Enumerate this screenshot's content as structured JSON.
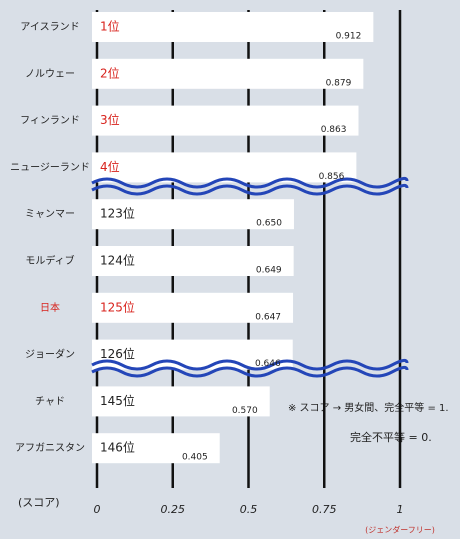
{
  "chart_data": {
    "type": "bar",
    "orientation": "horizontal",
    "categories": [
      "アイスランド",
      "ノルウェー",
      "フィンランド",
      "ニュージーランド",
      "ミャンマー",
      "モルディブ",
      "日本",
      "ジョーダン",
      "チャド",
      "アフガニスタン"
    ],
    "ranks": [
      "1位",
      "2位",
      "3位",
      "4位",
      "123位",
      "124位",
      "125位",
      "126位",
      "145位",
      "146位"
    ],
    "rank_colors": [
      "#d8231d",
      "#d8231d",
      "#d8231d",
      "#d8231d",
      "#222222",
      "#222222",
      "#d8231d",
      "#222222",
      "#222222",
      "#222222"
    ],
    "category_colors": [
      "#222222",
      "#222222",
      "#222222",
      "#222222",
      "#222222",
      "#222222",
      "#d8231d",
      "#222222",
      "#222222",
      "#222222"
    ],
    "values": [
      0.912,
      0.879,
      0.863,
      0.856,
      0.65,
      0.649,
      0.647,
      0.646,
      0.57,
      0.405
    ],
    "value_labels": [
      "0.912",
      "0.879",
      "0.863",
      "0.856",
      "0.650",
      "0.649",
      "0.647",
      "0.646",
      "0.570",
      "0.405"
    ],
    "color": "#ffffff",
    "xlim": [
      0,
      1
    ],
    "xticks": [
      0,
      0.25,
      0.5,
      0.75,
      1
    ],
    "x_label": "(スコア)",
    "x_note": "(ジェンダーフリー)",
    "annotations": [
      "※ スコア → 男女間、完全平等 = 1.",
      "完全不平等 = 0."
    ],
    "grid": true
  }
}
